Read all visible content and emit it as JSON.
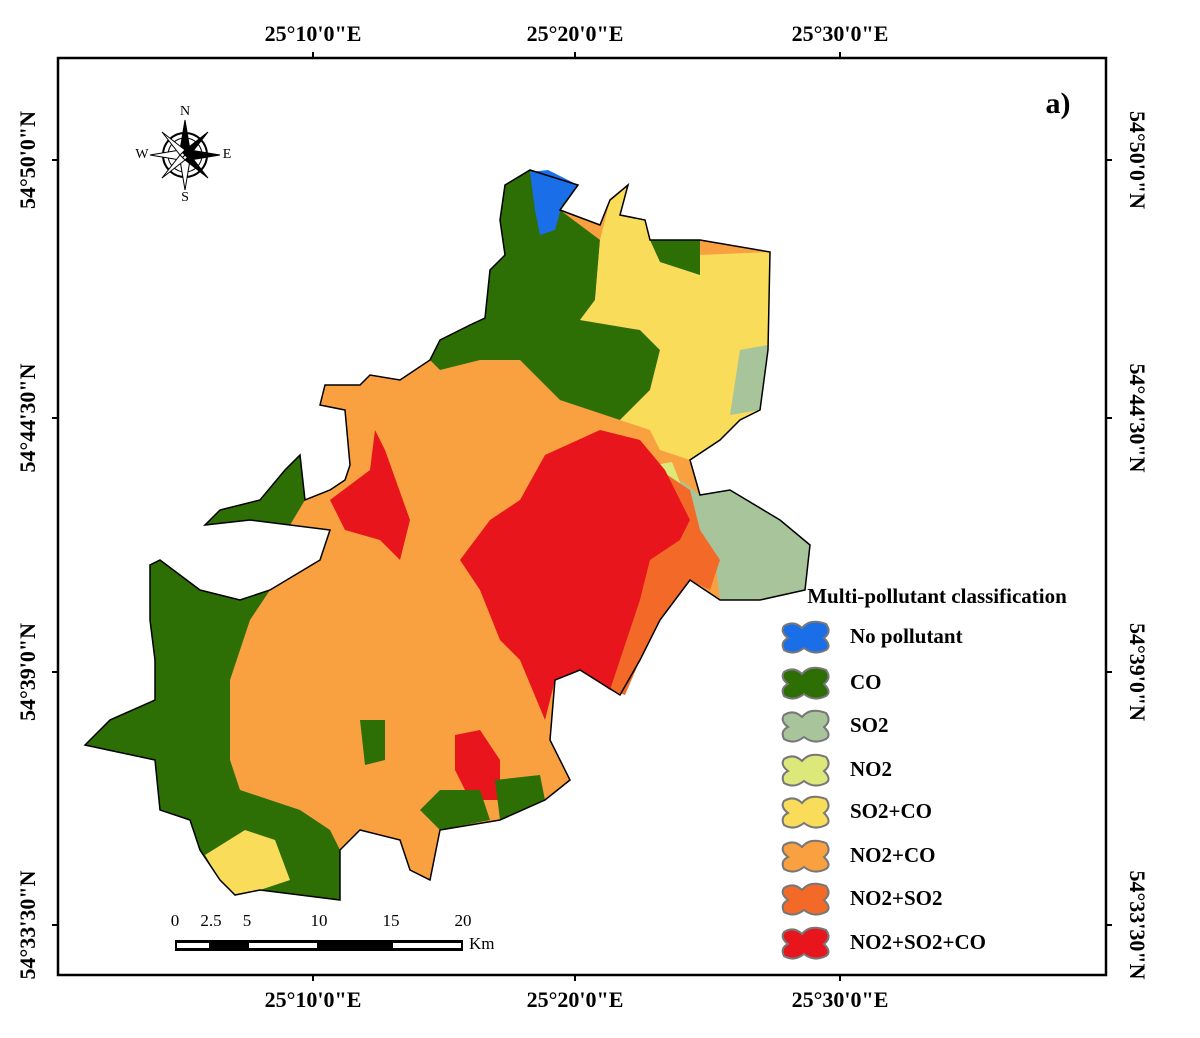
{
  "panel_label": "a)",
  "graticule": {
    "top": [
      "25°10'0\"E",
      "25°20'0\"E",
      "25°30'0\"E"
    ],
    "bottom": [
      "25°10'0\"E",
      "25°20'0\"E",
      "25°30'0\"E"
    ],
    "left": [
      "54°50'0\"N",
      "54°44'30\"N",
      "54°39'0\"N",
      "54°33'30\"N"
    ],
    "right": [
      "54°50'0\"N",
      "54°44'30\"N",
      "54°39'0\"N",
      "54°33'30\"N"
    ]
  },
  "compass": {
    "n": "N",
    "e": "E",
    "s": "S",
    "w": "W"
  },
  "scale_bar": {
    "ticks": [
      0,
      2.5,
      5,
      10,
      15,
      20
    ],
    "unit": "Km"
  },
  "legend": {
    "title": "Multi-pollutant classification",
    "items": [
      {
        "label": "No pollutant",
        "color": "#1a6ee8"
      },
      {
        "label": "CO",
        "color": "#2d6e05"
      },
      {
        "label": "SO2",
        "color": "#a8c49a"
      },
      {
        "label": "NO2",
        "color": "#dde87a"
      },
      {
        "label": "SO2+CO",
        "color": "#f8dc5a"
      },
      {
        "label": "NO2+CO",
        "color": "#f9a040"
      },
      {
        "label": "NO2+SO2",
        "color": "#f36a28"
      },
      {
        "label": "NO2+SO2+CO",
        "color": "#e8161c"
      }
    ]
  }
}
